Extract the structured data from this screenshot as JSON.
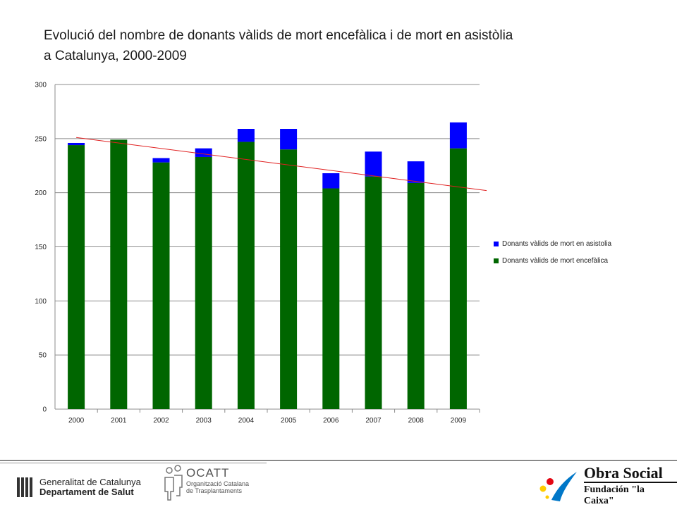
{
  "title_line1": "Evolució del nombre de donants vàlids de mort encefàlica i de mort en asistòlia",
  "title_line2": "a Catalunya, 2000-2009",
  "chart_data": {
    "type": "bar",
    "stacked": true,
    "categories": [
      "2000",
      "2001",
      "2002",
      "2003",
      "2004",
      "2005",
      "2006",
      "2007",
      "2008",
      "2009"
    ],
    "series": [
      {
        "name": "Donants vàlids de mort encefàlica",
        "color": "#006600",
        "values": [
          244,
          249,
          228,
          233,
          247,
          240,
          204,
          215,
          209,
          241
        ]
      },
      {
        "name": "Donants vàlids de mort en asistolia",
        "color": "#0000ff",
        "values": [
          2,
          0,
          4,
          8,
          12,
          19,
          14,
          23,
          20,
          24
        ]
      }
    ],
    "trendline": {
      "color": "#e02020",
      "start": 251,
      "end": 202
    },
    "ylim": [
      0,
      300
    ],
    "yticks": [
      0,
      50,
      100,
      150,
      200,
      250,
      300
    ],
    "grid": true,
    "legend_position": "right"
  },
  "footer": {
    "gencat_line1": "Generalitat de Catalunya",
    "gencat_line2": "Departament de Salut",
    "ocatt_name": "OCATT",
    "ocatt_sub1": "Organització Catalana",
    "ocatt_sub2": "de Trasplantaments",
    "lacaixa_line1": "Obra Social",
    "lacaixa_line2": "Fundación \"la Caixa\""
  }
}
